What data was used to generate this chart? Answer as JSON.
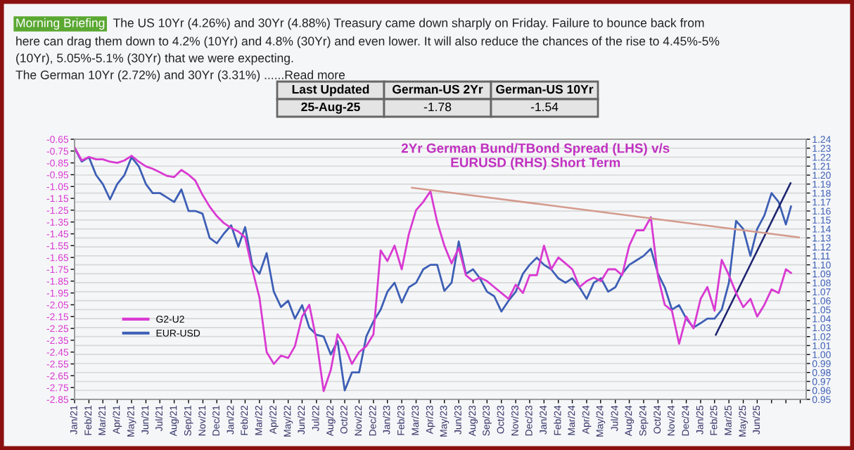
{
  "chart_data": {
    "type": "line",
    "title": "2Yr German Bund/TBond Spread (LHS) v/s\nEURUSD (RHS) Short Term",
    "annotations": [
      "Morning Briefing",
      "The US 10Yr (4.26%) and 30Yr (4.88%) Treasury came down sharply on Friday. Failure to bounce back from",
      "here can drag them down to 4.2% (10Yr) and 4.8% (30Yr) and even lower. It will also reduce the chances of the rise to 4.45%-5%",
      "(10Yr), 5.05%-5.1% (30Yr) that we were expecting.",
      "The German 10Yr (2.72%) and 30Yr (3.31%) ......Read more",
      "Last Updated",
      "German-US 2Yr",
      "German-US 10Yr",
      "25-Aug-25",
      "-1.78",
      "-1.54"
    ],
    "x": [
      "2021-01-01",
      "2021-01-18",
      "2021-02-04",
      "2021-02-21",
      "2021-03-09",
      "2021-03-26",
      "2021-04-12",
      "2021-04-29",
      "2021-05-16",
      "2021-06-02",
      "2021-06-19",
      "2021-07-05",
      "2021-07-22",
      "2021-08-08",
      "2021-08-25",
      "2021-09-11",
      "2021-09-28",
      "2021-10-14",
      "2021-10-31",
      "2021-11-17",
      "2021-12-04",
      "2021-12-21",
      "2022-01-07",
      "2022-01-24",
      "2022-02-09",
      "2022-02-26",
      "2022-03-15",
      "2022-04-01",
      "2022-04-18",
      "2022-05-05",
      "2022-05-22",
      "2022-06-07",
      "2022-06-24",
      "2022-07-11",
      "2022-07-28",
      "2022-08-14",
      "2022-08-31",
      "2022-09-16",
      "2022-10-03",
      "2022-10-20",
      "2022-11-06",
      "2022-11-23",
      "2022-12-10",
      "2022-12-27",
      "2023-01-12",
      "2023-01-29",
      "2023-02-15",
      "2023-03-04",
      "2023-03-21",
      "2023-04-07",
      "2023-04-24",
      "2023-05-10",
      "2023-05-27",
      "2023-06-13",
      "2023-06-30",
      "2023-07-17",
      "2023-08-03",
      "2023-08-19",
      "2023-09-05",
      "2023-09-22",
      "2023-10-09",
      "2023-10-26",
      "2023-11-12",
      "2023-11-29",
      "2023-12-15",
      "2024-01-01",
      "2024-01-18",
      "2024-02-04",
      "2024-02-21",
      "2024-03-09",
      "2024-03-25",
      "2024-04-11",
      "2024-04-28",
      "2024-05-15",
      "2024-06-01",
      "2024-06-18",
      "2024-07-05",
      "2024-07-21",
      "2024-08-07",
      "2024-08-24",
      "2024-09-10",
      "2024-09-27",
      "2024-10-14",
      "2024-10-30",
      "2024-11-16",
      "2024-12-03",
      "2024-12-20",
      "2025-01-06",
      "2025-01-23",
      "2025-02-08",
      "2025-02-25",
      "2025-03-14",
      "2025-03-31",
      "2025-04-17",
      "2025-05-04",
      "2025-05-21",
      "2025-06-06",
      "2025-06-23",
      "2025-07-10",
      "2025-07-27",
      "2025-08-13",
      "2025-08-25"
    ],
    "series": [
      {
        "name": "G2-U2",
        "color": "#d93ad2",
        "values": [
          -0.72,
          -0.83,
          -0.8,
          -0.82,
          -0.82,
          -0.84,
          -0.85,
          -0.83,
          -0.79,
          -0.84,
          -0.88,
          -0.9,
          -0.93,
          -0.96,
          -0.97,
          -0.91,
          -0.95,
          -1.0,
          -1.12,
          -1.22,
          -1.3,
          -1.36,
          -1.4,
          -1.43,
          -1.48,
          -1.75,
          -1.99,
          -2.45,
          -2.55,
          -2.48,
          -2.5,
          -2.4,
          -2.15,
          -2.05,
          -2.35,
          -2.78,
          -2.6,
          -2.3,
          -2.4,
          -2.55,
          -2.45,
          -2.4,
          -2.3,
          -1.59,
          -1.68,
          -1.55,
          -1.75,
          -1.45,
          -1.25,
          -1.18,
          -1.09,
          -1.35,
          -1.55,
          -1.7,
          -1.57,
          -1.8,
          -1.85,
          -1.82,
          -1.85,
          -1.9,
          -1.95,
          -2.0,
          -1.88,
          -1.95,
          -1.8,
          -1.8,
          -1.55,
          -1.75,
          -1.65,
          -1.7,
          -1.75,
          -1.9,
          -1.85,
          -1.82,
          -1.85,
          -1.75,
          -1.75,
          -1.8,
          -1.55,
          -1.42,
          -1.42,
          -1.31,
          -1.81,
          -2.05,
          -2.1,
          -2.38,
          -2.15,
          -2.25,
          -2.0,
          -1.9,
          -2.1,
          -1.67,
          -1.8,
          -1.95,
          -2.07,
          -2.0,
          -2.15,
          -2.05,
          -1.92,
          -1.95,
          -1.75,
          -1.78
        ]
      },
      {
        "name": "EUR-USD",
        "color": "#3d5fb5",
        "axis": "y2",
        "values": [
          1.23,
          1.215,
          1.22,
          1.2,
          1.19,
          1.173,
          1.19,
          1.2,
          1.22,
          1.21,
          1.19,
          1.18,
          1.18,
          1.175,
          1.17,
          1.184,
          1.16,
          1.16,
          1.157,
          1.13,
          1.124,
          1.135,
          1.144,
          1.12,
          1.142,
          1.1,
          1.09,
          1.113,
          1.07,
          1.053,
          1.06,
          1.04,
          1.055,
          1.03,
          1.022,
          1.02,
          1.0,
          1.015,
          0.96,
          0.98,
          0.98,
          1.02,
          1.037,
          1.05,
          1.07,
          1.08,
          1.058,
          1.075,
          1.08,
          1.095,
          1.1,
          1.1,
          1.071,
          1.08,
          1.126,
          1.09,
          1.095,
          1.085,
          1.07,
          1.065,
          1.048,
          1.06,
          1.07,
          1.09,
          1.1,
          1.108,
          1.1,
          1.095,
          1.085,
          1.08,
          1.085,
          1.075,
          1.062,
          1.08,
          1.085,
          1.07,
          1.075,
          1.09,
          1.1,
          1.105,
          1.11,
          1.118,
          1.09,
          1.075,
          1.05,
          1.055,
          1.04,
          1.03,
          1.035,
          1.04,
          1.04,
          1.05,
          1.08,
          1.149,
          1.14,
          1.11,
          1.14,
          1.155,
          1.18,
          1.17,
          1.145,
          1.165
        ]
      },
      {
        "type": "line",
        "color": "#d49a8c",
        "x": [
          "2023-03-11",
          "2025-09-13"
        ],
        "values": [
          -1.06,
          -1.48
        ]
      },
      {
        "type": "line",
        "color": "#1c2470",
        "axis": "y2",
        "x": [
          "2025-02-28",
          "2025-08-24"
        ],
        "values": [
          1.022,
          1.191
        ]
      }
    ],
    "xlim": [
      "2021-01-01",
      "2025-09-30"
    ],
    "xticks": [
      {
        "value": "2021-01-01",
        "label": "Jan/21"
      },
      {
        "value": "2021-02-04",
        "label": "Feb/21"
      },
      {
        "value": "2021-03-09",
        "label": "Mar/21"
      },
      {
        "value": "2021-04-12",
        "label": "Apr/21"
      },
      {
        "value": "2021-05-16",
        "label": "May/21"
      },
      {
        "value": "2021-06-19",
        "label": "Jun/21"
      },
      {
        "value": "2021-07-22",
        "label": "Jul/21"
      },
      {
        "value": "2021-08-25",
        "label": "Aug/21"
      },
      {
        "value": "2021-09-28",
        "label": "Sep/21"
      },
      {
        "value": "2021-11-01",
        "label": "Nov/21"
      },
      {
        "value": "2021-12-04",
        "label": "Dec/21"
      },
      {
        "value": "2022-01-07",
        "label": "Jan/22"
      },
      {
        "value": "2022-02-09",
        "label": "Feb/22"
      },
      {
        "value": "2022-03-15",
        "label": "Mar/22"
      },
      {
        "value": "2022-04-18",
        "label": "Apr/22"
      },
      {
        "value": "2022-05-22",
        "label": "May/22"
      },
      {
        "value": "2022-06-24",
        "label": "Jun/22"
      },
      {
        "value": "2022-07-28",
        "label": "Jul/22"
      },
      {
        "value": "2022-08-31",
        "label": "Aug/22"
      },
      {
        "value": "2022-10-03",
        "label": "Oct/22"
      },
      {
        "value": "2022-11-06",
        "label": "Nov/22"
      },
      {
        "value": "2022-12-10",
        "label": "Dec/22"
      },
      {
        "value": "2023-01-12",
        "label": "Jan/23"
      },
      {
        "value": "2023-02-15",
        "label": "Feb/23"
      },
      {
        "value": "2023-03-21",
        "label": "Mar/23"
      },
      {
        "value": "2023-04-24",
        "label": "Apr/23"
      },
      {
        "value": "2023-05-27",
        "label": "May/23"
      },
      {
        "value": "2023-06-30",
        "label": "Jun/23"
      },
      {
        "value": "2023-08-03",
        "label": "Aug/23"
      },
      {
        "value": "2023-09-05",
        "label": "Sep/23"
      },
      {
        "value": "2023-10-09",
        "label": "Oct/23"
      },
      {
        "value": "2023-11-12",
        "label": "Nov/23"
      },
      {
        "value": "2023-12-15",
        "label": "Dec/23"
      },
      {
        "value": "2024-01-18",
        "label": "Jan/24"
      },
      {
        "value": "2024-02-21",
        "label": "Feb/24"
      },
      {
        "value": "2024-03-25",
        "label": "Mar/24"
      },
      {
        "value": "2024-04-28",
        "label": "Apr/24"
      },
      {
        "value": "2024-05-31",
        "label": "May/24"
      },
      {
        "value": "2024-07-05",
        "label": "Jul/24"
      },
      {
        "value": "2024-08-07",
        "label": "Aug/24"
      },
      {
        "value": "2024-09-10",
        "label": "Sep/24"
      },
      {
        "value": "2024-10-14",
        "label": "Oct/24"
      },
      {
        "value": "2024-11-16",
        "label": "Nov/24"
      },
      {
        "value": "2024-12-20",
        "label": "Dec/24"
      },
      {
        "value": "2025-01-23",
        "label": "Jan/25"
      },
      {
        "value": "2025-02-25",
        "label": "Feb/25"
      },
      {
        "value": "2025-03-31",
        "label": "Mar/25"
      },
      {
        "value": "2025-05-04",
        "label": "May/25"
      },
      {
        "value": "2025-06-06",
        "label": "Jun/25"
      },
      {
        "value": "2025-07-10",
        "label": null
      },
      {
        "value": "2025-08-13",
        "label": null
      },
      {
        "value": "2025-09-16",
        "label": null
      }
    ],
    "ylim": [
      -2.85,
      -0.65
    ],
    "yticks": [
      -0.65,
      -0.75,
      -0.85,
      -0.95,
      -1.05,
      -1.15,
      -1.25,
      -1.35,
      -1.45,
      -1.55,
      -1.65,
      -1.75,
      -1.85,
      -1.95,
      -2.05,
      -2.15,
      -2.25,
      -2.35,
      -2.45,
      -2.55,
      -2.65,
      -2.75,
      -2.85
    ],
    "y2lim": [
      0.95,
      1.24
    ],
    "y2ticks": [
      0.95,
      0.96,
      0.97,
      0.98,
      0.99,
      {
        "value": 1.0,
        "label": "1.00"
      },
      1.01,
      1.02,
      1.03,
      1.04,
      1.05,
      1.06,
      1.07,
      1.08,
      1.09,
      {
        "value": 1.1,
        "label": "1.10"
      },
      1.11,
      1.12,
      1.13,
      1.14,
      1.15,
      1.16,
      1.17,
      1.18,
      1.19,
      {
        "value": 1.2,
        "label": "1.20"
      },
      1.21,
      1.22,
      1.23,
      1.24
    ],
    "grid": "y",
    "legend": "bottom left",
    "marker": "none",
    "line_style": "solid"
  }
}
